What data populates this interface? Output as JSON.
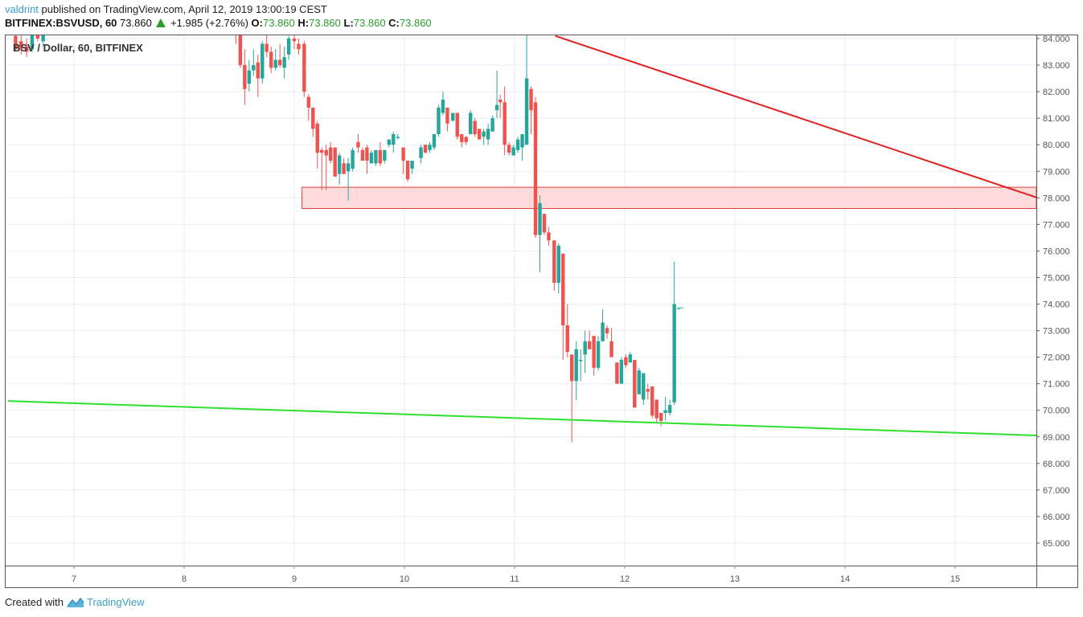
{
  "header": {
    "author": "valdrint",
    "published_text": " published on TradingView.com, April 12, 2019 13:00:19 CEST",
    "symbol": "BITFINEX:BSVUSD, 60",
    "last_price": "73.860",
    "change": "+1.985 (+2.76%)",
    "ohlc": [
      {
        "label": "O:",
        "value": "73.860"
      },
      {
        "label": "H:",
        "value": "73.860"
      },
      {
        "label": "L:",
        "value": "73.860"
      },
      {
        "label": "C:",
        "value": "73.860"
      }
    ]
  },
  "legend": "BSV / Dollar, 60, BITFINEX",
  "footer": {
    "created_with": "Created with",
    "brand": "TradingView"
  },
  "colors": {
    "up": "#26a69a",
    "down": "#ef5350",
    "resistance_line": "#e02020",
    "support_line": "#2ee02e",
    "zone_fill": "#ffd6d6",
    "zone_border": "#e03a3a",
    "grid": "#e6eef4"
  },
  "chart_data": {
    "type": "candlestick",
    "title": "BSV / Dollar, 60, BITFINEX",
    "xlabel": "",
    "ylabel": "",
    "x_ticks": [
      "7",
      "8",
      "9",
      "10",
      "11",
      "12",
      "13",
      "14",
      "15"
    ],
    "y_ticks": [
      "84.000",
      "83.000",
      "82.000",
      "81.000",
      "80.000",
      "79.000",
      "78.000",
      "77.000",
      "76.000",
      "75.000",
      "74.000",
      "73.000",
      "72.000",
      "71.000",
      "70.000",
      "69.000",
      "68.000",
      "67.000",
      "66.000",
      "65.000"
    ],
    "ylim": [
      64.2,
      84.2
    ],
    "grid": true,
    "annotations": [
      {
        "type": "horizontal_zone",
        "y_from": 77.6,
        "y_to": 78.4,
        "x_start_day": 9.07,
        "label": "support/resistance zone"
      },
      {
        "type": "trendline",
        "color": "red",
        "from": {
          "day": 11.37,
          "price": 84.1
        },
        "to": {
          "day": 15.75,
          "price": 78.0
        }
      },
      {
        "type": "trendline",
        "color": "green",
        "from": {
          "day": 6.4,
          "price": 70.35
        },
        "to": {
          "day": 15.75,
          "price": 69.05
        }
      }
    ],
    "candles": [
      {
        "d": 6.47,
        "o": 84.1,
        "h": 84.4,
        "l": 83.5,
        "c": 83.6
      },
      {
        "d": 6.52,
        "o": 83.9,
        "h": 84.2,
        "l": 83.4,
        "c": 83.6
      },
      {
        "d": 6.57,
        "o": 83.7,
        "h": 84.0,
        "l": 83.3,
        "c": 83.5
      },
      {
        "d": 6.62,
        "o": 83.6,
        "h": 84.3,
        "l": 83.5,
        "c": 84.2
      },
      {
        "d": 6.67,
        "o": 84.3,
        "h": 84.6,
        "l": 83.9,
        "c": 84.0
      },
      {
        "d": 6.72,
        "o": 83.9,
        "h": 84.5,
        "l": 83.7,
        "c": 84.4
      },
      {
        "d": 7.95,
        "o": 84.3,
        "h": 84.5,
        "l": 84.1,
        "c": 84.2
      },
      {
        "d": 8.47,
        "o": 84.5,
        "h": 84.9,
        "l": 83.8,
        "c": 84.3
      },
      {
        "d": 8.51,
        "o": 84.2,
        "h": 84.6,
        "l": 82.9,
        "c": 83.0
      },
      {
        "d": 8.55,
        "o": 83.0,
        "h": 83.6,
        "l": 81.5,
        "c": 82.1
      },
      {
        "d": 8.59,
        "o": 82.3,
        "h": 83.2,
        "l": 82.0,
        "c": 82.8
      },
      {
        "d": 8.63,
        "o": 82.8,
        "h": 83.6,
        "l": 82.6,
        "c": 83.0
      },
      {
        "d": 8.67,
        "o": 83.1,
        "h": 83.4,
        "l": 81.8,
        "c": 82.5
      },
      {
        "d": 8.71,
        "o": 82.5,
        "h": 83.9,
        "l": 82.3,
        "c": 83.8
      },
      {
        "d": 8.75,
        "o": 83.8,
        "h": 84.2,
        "l": 83.3,
        "c": 83.5
      },
      {
        "d": 8.79,
        "o": 83.5,
        "h": 83.7,
        "l": 82.7,
        "c": 82.9
      },
      {
        "d": 8.83,
        "o": 82.9,
        "h": 83.6,
        "l": 82.8,
        "c": 83.2
      },
      {
        "d": 8.87,
        "o": 83.2,
        "h": 83.8,
        "l": 82.9,
        "c": 83.0
      },
      {
        "d": 8.91,
        "o": 82.9,
        "h": 83.7,
        "l": 82.5,
        "c": 83.3
      },
      {
        "d": 8.95,
        "o": 83.4,
        "h": 84.1,
        "l": 83.2,
        "c": 84.0
      },
      {
        "d": 9.0,
        "o": 84.0,
        "h": 84.2,
        "l": 83.6,
        "c": 83.9
      },
      {
        "d": 9.04,
        "o": 83.8,
        "h": 84.0,
        "l": 83.4,
        "c": 83.6
      },
      {
        "d": 9.09,
        "o": 83.8,
        "h": 83.9,
        "l": 81.8,
        "c": 82.0
      },
      {
        "d": 9.13,
        "o": 81.8,
        "h": 81.9,
        "l": 80.9,
        "c": 81.4
      },
      {
        "d": 9.17,
        "o": 81.4,
        "h": 81.4,
        "l": 80.3,
        "c": 80.6
      },
      {
        "d": 9.21,
        "o": 80.8,
        "h": 80.9,
        "l": 79.1,
        "c": 79.7
      },
      {
        "d": 9.25,
        "o": 79.8,
        "h": 79.9,
        "l": 78.3,
        "c": 79.7
      },
      {
        "d": 9.29,
        "o": 79.8,
        "h": 80.0,
        "l": 78.3,
        "c": 79.6
      },
      {
        "d": 9.33,
        "o": 79.9,
        "h": 80.1,
        "l": 79.3,
        "c": 79.4
      },
      {
        "d": 9.37,
        "o": 79.9,
        "h": 79.9,
        "l": 78.9,
        "c": 78.8
      },
      {
        "d": 9.41,
        "o": 78.9,
        "h": 79.7,
        "l": 78.5,
        "c": 79.6
      },
      {
        "d": 9.45,
        "o": 79.3,
        "h": 79.5,
        "l": 78.9,
        "c": 78.9
      },
      {
        "d": 9.49,
        "o": 79.0,
        "h": 79.5,
        "l": 77.9,
        "c": 79.3
      },
      {
        "d": 9.53,
        "o": 79.1,
        "h": 79.9,
        "l": 79.0,
        "c": 79.8
      },
      {
        "d": 9.58,
        "o": 80.1,
        "h": 80.4,
        "l": 79.7,
        "c": 79.9
      },
      {
        "d": 9.62,
        "o": 79.8,
        "h": 79.9,
        "l": 79.4,
        "c": 79.4
      },
      {
        "d": 9.66,
        "o": 79.9,
        "h": 80.0,
        "l": 78.9,
        "c": 79.4
      },
      {
        "d": 9.7,
        "o": 79.3,
        "h": 79.8,
        "l": 79.3,
        "c": 79.7
      },
      {
        "d": 9.74,
        "o": 79.3,
        "h": 79.8,
        "l": 79.2,
        "c": 79.8
      },
      {
        "d": 9.78,
        "o": 79.8,
        "h": 80.1,
        "l": 79.2,
        "c": 79.3
      },
      {
        "d": 9.82,
        "o": 79.4,
        "h": 79.8,
        "l": 79.3,
        "c": 79.8
      },
      {
        "d": 9.86,
        "o": 80.0,
        "h": 80.2,
        "l": 79.9,
        "c": 80.2
      },
      {
        "d": 9.9,
        "o": 80.0,
        "h": 80.5,
        "l": 79.7,
        "c": 80.4
      },
      {
        "d": 9.94,
        "o": 80.3,
        "h": 80.4,
        "l": 80.2,
        "c": 80.3
      },
      {
        "d": 9.99,
        "o": 79.9,
        "h": 79.9,
        "l": 78.9,
        "c": 79.4
      },
      {
        "d": 10.03,
        "o": 79.4,
        "h": 79.4,
        "l": 78.6,
        "c": 78.7
      },
      {
        "d": 10.07,
        "o": 79.1,
        "h": 79.4,
        "l": 78.9,
        "c": 79.4
      },
      {
        "d": 10.15,
        "o": 79.5,
        "h": 80.0,
        "l": 79.3,
        "c": 79.9
      },
      {
        "d": 10.19,
        "o": 80.0,
        "h": 80.0,
        "l": 79.7,
        "c": 79.7
      },
      {
        "d": 10.23,
        "o": 79.8,
        "h": 80.1,
        "l": 79.7,
        "c": 80.0
      },
      {
        "d": 10.27,
        "o": 79.9,
        "h": 80.3,
        "l": 79.8,
        "c": 80.4
      },
      {
        "d": 10.31,
        "o": 80.4,
        "h": 81.5,
        "l": 80.3,
        "c": 81.4
      },
      {
        "d": 10.35,
        "o": 81.2,
        "h": 82.0,
        "l": 81.1,
        "c": 81.7
      },
      {
        "d": 10.39,
        "o": 81.4,
        "h": 81.4,
        "l": 80.5,
        "c": 80.8
      },
      {
        "d": 10.44,
        "o": 80.9,
        "h": 81.2,
        "l": 80.9,
        "c": 81.2
      },
      {
        "d": 10.48,
        "o": 81.2,
        "h": 81.2,
        "l": 80.2,
        "c": 80.3
      },
      {
        "d": 10.52,
        "o": 80.4,
        "h": 80.4,
        "l": 79.9,
        "c": 80.1
      },
      {
        "d": 10.56,
        "o": 80.3,
        "h": 80.3,
        "l": 80.0,
        "c": 80.1
      },
      {
        "d": 10.6,
        "o": 80.4,
        "h": 81.3,
        "l": 80.4,
        "c": 81.2
      },
      {
        "d": 10.64,
        "o": 80.9,
        "h": 81.0,
        "l": 80.3,
        "c": 80.4
      },
      {
        "d": 10.68,
        "o": 80.6,
        "h": 80.6,
        "l": 80.2,
        "c": 80.2
      },
      {
        "d": 10.72,
        "o": 80.3,
        "h": 80.6,
        "l": 80.0,
        "c": 80.5
      },
      {
        "d": 10.76,
        "o": 80.2,
        "h": 80.8,
        "l": 80.0,
        "c": 80.6
      },
      {
        "d": 10.8,
        "o": 80.5,
        "h": 81.1,
        "l": 80.5,
        "c": 81.0
      },
      {
        "d": 10.84,
        "o": 81.3,
        "h": 82.8,
        "l": 81.0,
        "c": 81.5
      },
      {
        "d": 10.87,
        "o": 81.7,
        "h": 81.9,
        "l": 81.0,
        "c": 81.6
      },
      {
        "d": 10.91,
        "o": 81.6,
        "h": 82.2,
        "l": 79.6,
        "c": 80.0
      },
      {
        "d": 10.95,
        "o": 80.0,
        "h": 80.1,
        "l": 79.6,
        "c": 79.7
      },
      {
        "d": 10.99,
        "o": 79.6,
        "h": 80.0,
        "l": 79.6,
        "c": 79.9
      },
      {
        "d": 11.03,
        "o": 79.8,
        "h": 80.3,
        "l": 79.7,
        "c": 80.2
      },
      {
        "d": 11.07,
        "o": 79.9,
        "h": 80.4,
        "l": 79.4,
        "c": 80.4
      },
      {
        "d": 11.11,
        "o": 80.0,
        "h": 84.5,
        "l": 80.0,
        "c": 82.5
      },
      {
        "d": 11.15,
        "o": 82.1,
        "h": 82.2,
        "l": 80.4,
        "c": 81.3
      },
      {
        "d": 11.19,
        "o": 81.6,
        "h": 81.8,
        "l": 76.5,
        "c": 76.6
      },
      {
        "d": 11.23,
        "o": 76.6,
        "h": 78.1,
        "l": 75.2,
        "c": 77.8
      },
      {
        "d": 11.27,
        "o": 77.4,
        "h": 77.4,
        "l": 76.6,
        "c": 76.7
      },
      {
        "d": 11.31,
        "o": 76.7,
        "h": 76.9,
        "l": 76.2,
        "c": 76.4
      },
      {
        "d": 11.36,
        "o": 76.4,
        "h": 76.4,
        "l": 74.5,
        "c": 74.8
      },
      {
        "d": 11.4,
        "o": 74.8,
        "h": 76.3,
        "l": 74.4,
        "c": 76.2
      },
      {
        "d": 11.44,
        "o": 75.9,
        "h": 75.9,
        "l": 71.9,
        "c": 73.2
      },
      {
        "d": 11.48,
        "o": 73.2,
        "h": 74.0,
        "l": 72.0,
        "c": 72.2
      },
      {
        "d": 11.52,
        "o": 72.1,
        "h": 72.1,
        "l": 68.8,
        "c": 71.1
      },
      {
        "d": 11.56,
        "o": 71.1,
        "h": 72.6,
        "l": 70.4,
        "c": 72.3
      },
      {
        "d": 11.6,
        "o": 71.9,
        "h": 72.3,
        "l": 71.1,
        "c": 71.9
      },
      {
        "d": 11.64,
        "o": 72.1,
        "h": 73.0,
        "l": 71.4,
        "c": 72.6
      },
      {
        "d": 11.68,
        "o": 72.6,
        "h": 73.0,
        "l": 72.3,
        "c": 72.3
      },
      {
        "d": 11.72,
        "o": 72.8,
        "h": 72.8,
        "l": 71.3,
        "c": 71.6
      },
      {
        "d": 11.76,
        "o": 71.6,
        "h": 72.8,
        "l": 71.5,
        "c": 72.6
      },
      {
        "d": 11.8,
        "o": 72.6,
        "h": 73.8,
        "l": 72.6,
        "c": 73.3
      },
      {
        "d": 11.84,
        "o": 73.1,
        "h": 73.2,
        "l": 72.7,
        "c": 72.9
      },
      {
        "d": 11.88,
        "o": 72.6,
        "h": 73.1,
        "l": 72.0,
        "c": 72.0
      },
      {
        "d": 11.93,
        "o": 71.8,
        "h": 71.8,
        "l": 71.0,
        "c": 71.0
      },
      {
        "d": 11.97,
        "o": 71.0,
        "h": 72.0,
        "l": 71.0,
        "c": 71.9
      },
      {
        "d": 12.01,
        "o": 72.0,
        "h": 72.1,
        "l": 71.6,
        "c": 71.7
      },
      {
        "d": 12.05,
        "o": 71.8,
        "h": 72.2,
        "l": 71.8,
        "c": 72.1
      },
      {
        "d": 12.09,
        "o": 71.9,
        "h": 71.9,
        "l": 70.1,
        "c": 70.1
      },
      {
        "d": 12.13,
        "o": 70.6,
        "h": 71.6,
        "l": 70.6,
        "c": 71.5
      },
      {
        "d": 12.17,
        "o": 70.4,
        "h": 71.4,
        "l": 70.2,
        "c": 71.4
      },
      {
        "d": 12.21,
        "o": 70.8,
        "h": 71.0,
        "l": 70.4,
        "c": 70.7
      },
      {
        "d": 12.25,
        "o": 70.9,
        "h": 70.9,
        "l": 69.7,
        "c": 69.8
      },
      {
        "d": 12.29,
        "o": 70.4,
        "h": 70.4,
        "l": 69.5,
        "c": 69.7
      },
      {
        "d": 12.33,
        "o": 69.9,
        "h": 69.9,
        "l": 69.4,
        "c": 69.6
      },
      {
        "d": 12.37,
        "o": 69.9,
        "h": 70.5,
        "l": 69.6,
        "c": 70.0
      },
      {
        "d": 12.41,
        "o": 69.9,
        "h": 70.4,
        "l": 69.8,
        "c": 70.2
      },
      {
        "d": 12.45,
        "o": 70.3,
        "h": 75.6,
        "l": 70.2,
        "c": 74.0
      },
      {
        "d": 12.49,
        "o": 73.86,
        "h": 73.86,
        "l": 73.86,
        "c": 73.86
      }
    ]
  }
}
